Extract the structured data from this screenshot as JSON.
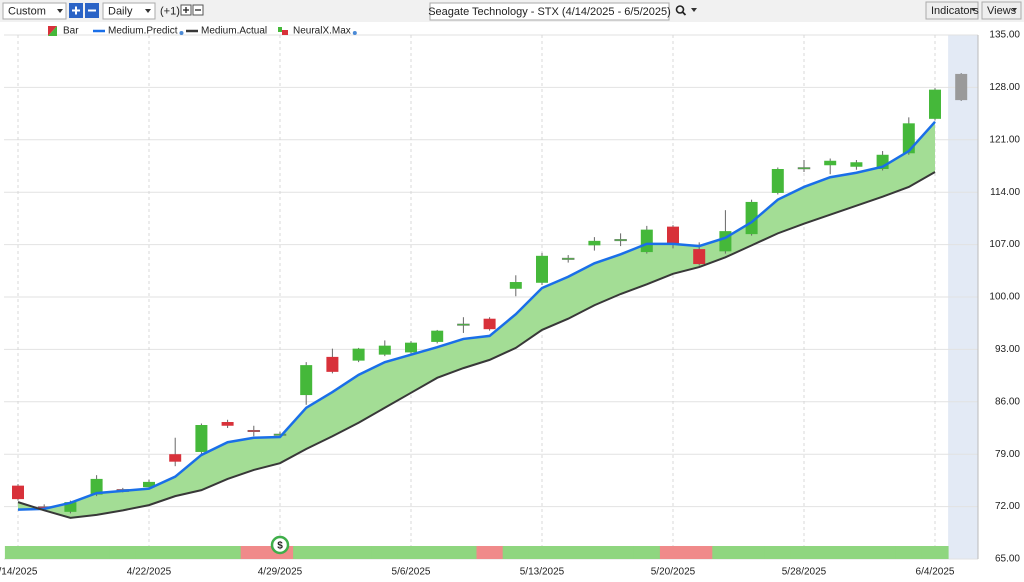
{
  "toolbar": {
    "range": "Custom",
    "interval": "Daily",
    "offset": "(+1)",
    "symbol": "Seagate Technology - STX (4/14/2025 - 6/5/2025)",
    "indicators": "Indicators",
    "views": "Views"
  },
  "chart_data": {
    "type": "candlestick",
    "categories": [
      "/14/2025",
      null,
      null,
      null,
      null,
      "4/22/2025",
      null,
      null,
      null,
      null,
      "4/29/2025",
      null,
      null,
      null,
      null,
      "5/6/2025",
      null,
      null,
      null,
      null,
      "5/13/2025",
      null,
      null,
      null,
      null,
      "5/20/2025",
      null,
      null,
      null,
      null,
      "5/28/2025",
      null,
      null,
      null,
      null,
      "6/4/2025",
      null
    ],
    "ohlc": {
      "name": "Bar",
      "up_color": "#45b83a",
      "down_color": "#d8313a",
      "forecast_color": "#9a9a9a",
      "open": [
        74.8,
        72.0,
        71.3,
        73.6,
        74.3,
        74.6,
        79.0,
        79.3,
        83.3,
        82.2,
        81.5,
        86.9,
        92.0,
        91.5,
        92.3,
        92.6,
        94.0,
        96.2,
        97.1,
        101.1,
        101.9,
        105.0,
        106.9,
        107.5,
        106.0,
        109.4,
        106.4,
        106.1,
        108.4,
        113.9,
        117.1,
        117.6,
        117.4,
        117.1,
        119.2,
        123.8,
        126.3
      ],
      "high": [
        75.0,
        72.3,
        72.8,
        76.2,
        74.5,
        75.6,
        81.2,
        83.1,
        83.6,
        82.8,
        82.0,
        91.3,
        93.1,
        93.2,
        94.2,
        94.1,
        95.6,
        97.3,
        97.3,
        102.9,
        105.9,
        105.6,
        108.0,
        108.5,
        109.5,
        109.6,
        107.3,
        111.6,
        113.0,
        117.3,
        118.3,
        118.5,
        118.3,
        119.5,
        124.0,
        127.9,
        129.9
      ],
      "low": [
        72.8,
        71.8,
        71.1,
        73.4,
        73.9,
        74.4,
        77.4,
        79.0,
        82.5,
        81.4,
        81.2,
        85.6,
        89.8,
        91.3,
        92.1,
        92.3,
        93.8,
        95.2,
        95.5,
        100.1,
        101.6,
        104.6,
        106.2,
        106.8,
        105.8,
        106.5,
        104.2,
        105.8,
        108.2,
        113.7,
        116.7,
        116.4,
        117.0,
        116.9,
        119.0,
        123.6,
        126.2
      ],
      "close": [
        73.0,
        71.9,
        72.6,
        75.7,
        74.0,
        75.3,
        78.0,
        82.9,
        82.8,
        82.0,
        81.7,
        90.9,
        90.0,
        93.1,
        93.5,
        93.9,
        95.5,
        96.4,
        95.7,
        102.0,
        105.5,
        105.2,
        107.5,
        107.7,
        109.0,
        107.1,
        104.4,
        108.8,
        112.7,
        117.1,
        117.3,
        118.2,
        118.0,
        119.0,
        123.2,
        127.7,
        129.8
      ]
    },
    "series": [
      {
        "name": "Medium.Predict",
        "color": "#1a6fe8",
        "values": [
          71.6,
          71.7,
          72.5,
          73.8,
          74.1,
          74.4,
          76.0,
          78.9,
          80.6,
          81.2,
          81.3,
          85.2,
          87.3,
          89.6,
          91.3,
          92.3,
          93.3,
          94.4,
          94.8,
          97.7,
          101.2,
          102.7,
          104.5,
          105.7,
          107.1,
          107.1,
          106.8,
          107.9,
          110.0,
          113.0,
          114.7,
          116.0,
          116.6,
          117.4,
          119.5,
          123.4,
          null
        ]
      },
      {
        "name": "Medium.Actual",
        "color": "#383838",
        "values": [
          72.6,
          71.5,
          70.5,
          70.9,
          71.5,
          72.2,
          73.4,
          74.2,
          75.7,
          76.9,
          77.8,
          79.7,
          81.4,
          83.2,
          85.2,
          87.2,
          89.2,
          90.5,
          91.6,
          93.2,
          95.6,
          97.1,
          98.9,
          100.4,
          101.7,
          103.1,
          104.0,
          105.3,
          106.9,
          108.5,
          109.8,
          111.0,
          112.2,
          113.4,
          114.7,
          116.7,
          null
        ]
      }
    ],
    "band_color": "#a3dd95",
    "forecast_index": 36,
    "forecast_color": "#e3eaf5",
    "signal": {
      "name": "NeuralX.Max",
      "colors": [
        "#8fd67f",
        "#8fd67f",
        "#8fd67f",
        "#8fd67f",
        "#8fd67f",
        "#8fd67f",
        "#8fd67f",
        "#8fd67f",
        "#8fd67f",
        "#f08a8a",
        "#f08a8a",
        "#8fd67f",
        "#8fd67f",
        "#8fd67f",
        "#8fd67f",
        "#8fd67f",
        "#8fd67f",
        "#8fd67f",
        "#f08a8a",
        "#8fd67f",
        "#8fd67f",
        "#8fd67f",
        "#8fd67f",
        "#8fd67f",
        "#8fd67f",
        "#f08a8a",
        "#f08a8a",
        "#8fd67f",
        "#8fd67f",
        "#8fd67f",
        "#8fd67f",
        "#8fd67f",
        "#8fd67f",
        "#8fd67f",
        "#8fd67f",
        "#8fd67f",
        null
      ],
      "markers": [
        {
          "index": 10,
          "label": "$"
        }
      ]
    },
    "ylim": [
      65,
      135
    ],
    "yticks": [
      {
        "value": 65,
        "label": "65.00"
      },
      {
        "value": 72,
        "label": "72.00"
      },
      {
        "value": 79,
        "label": "79.00"
      },
      {
        "value": 86,
        "label": "86.00"
      },
      {
        "value": 93,
        "label": "93.00"
      },
      {
        "value": 100,
        "label": "100.00"
      },
      {
        "value": 107,
        "label": "107.00"
      },
      {
        "value": 114,
        "label": "114.00"
      },
      {
        "value": 121,
        "label": "121.00"
      },
      {
        "value": 128,
        "label": "128.00"
      },
      {
        "value": 135,
        "label": "135.00"
      }
    ],
    "grid": true
  }
}
